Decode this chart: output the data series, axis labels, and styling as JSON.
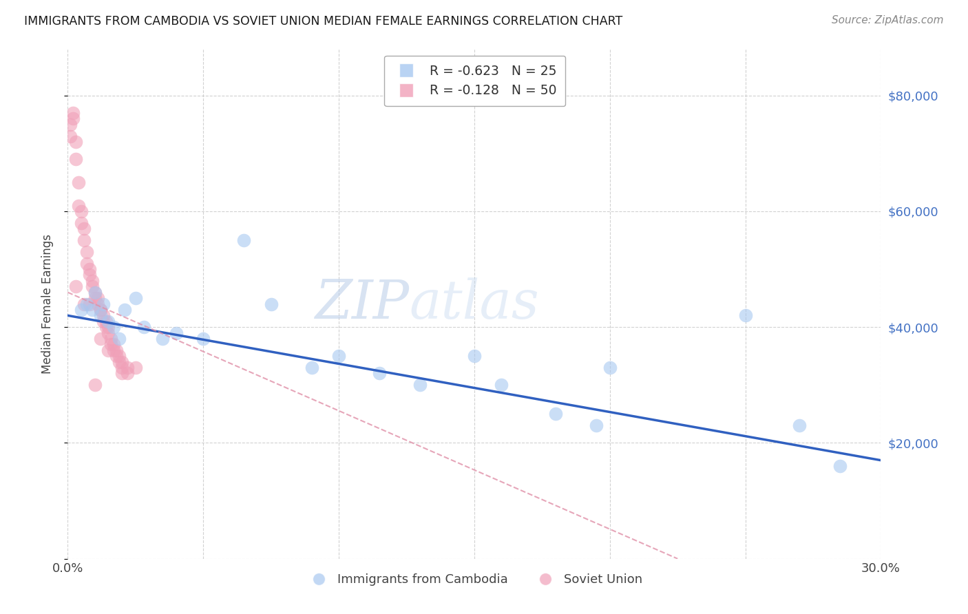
{
  "title": "IMMIGRANTS FROM CAMBODIA VS SOVIET UNION MEDIAN FEMALE EARNINGS CORRELATION CHART",
  "source": "Source: ZipAtlas.com",
  "ylabel": "Median Female Earnings",
  "xlim": [
    0.0,
    0.3
  ],
  "ylim": [
    0,
    88000
  ],
  "title_color": "#1a1a1a",
  "source_color": "#888888",
  "cambodia_scatter": [
    [
      0.005,
      43000
    ],
    [
      0.007,
      44000
    ],
    [
      0.009,
      43000
    ],
    [
      0.01,
      46000
    ],
    [
      0.012,
      42000
    ],
    [
      0.013,
      44000
    ],
    [
      0.015,
      41000
    ],
    [
      0.017,
      40000
    ],
    [
      0.019,
      38000
    ],
    [
      0.021,
      43000
    ],
    [
      0.025,
      45000
    ],
    [
      0.028,
      40000
    ],
    [
      0.035,
      38000
    ],
    [
      0.04,
      39000
    ],
    [
      0.05,
      38000
    ],
    [
      0.065,
      55000
    ],
    [
      0.075,
      44000
    ],
    [
      0.09,
      33000
    ],
    [
      0.1,
      35000
    ],
    [
      0.115,
      32000
    ],
    [
      0.13,
      30000
    ],
    [
      0.15,
      35000
    ],
    [
      0.16,
      30000
    ],
    [
      0.18,
      25000
    ],
    [
      0.195,
      23000
    ],
    [
      0.2,
      33000
    ],
    [
      0.25,
      42000
    ],
    [
      0.27,
      23000
    ],
    [
      0.285,
      16000
    ]
  ],
  "soviet_scatter": [
    [
      0.002,
      77000
    ],
    [
      0.002,
      76000
    ],
    [
      0.003,
      72000
    ],
    [
      0.003,
      69000
    ],
    [
      0.004,
      65000
    ],
    [
      0.004,
      61000
    ],
    [
      0.005,
      60000
    ],
    [
      0.005,
      58000
    ],
    [
      0.006,
      57000
    ],
    [
      0.006,
      55000
    ],
    [
      0.007,
      53000
    ],
    [
      0.007,
      51000
    ],
    [
      0.008,
      50000
    ],
    [
      0.008,
      49000
    ],
    [
      0.009,
      48000
    ],
    [
      0.009,
      47000
    ],
    [
      0.01,
      46000
    ],
    [
      0.01,
      45000
    ],
    [
      0.011,
      45000
    ],
    [
      0.011,
      44000
    ],
    [
      0.012,
      43000
    ],
    [
      0.012,
      43000
    ],
    [
      0.013,
      42000
    ],
    [
      0.013,
      41000
    ],
    [
      0.014,
      41000
    ],
    [
      0.014,
      40000
    ],
    [
      0.015,
      40000
    ],
    [
      0.015,
      39000
    ],
    [
      0.016,
      38000
    ],
    [
      0.016,
      37000
    ],
    [
      0.017,
      37000
    ],
    [
      0.017,
      36000
    ],
    [
      0.018,
      36000
    ],
    [
      0.018,
      35000
    ],
    [
      0.019,
      35000
    ],
    [
      0.019,
      34000
    ],
    [
      0.02,
      34000
    ],
    [
      0.02,
      33000
    ],
    [
      0.022,
      33000
    ],
    [
      0.022,
      32000
    ],
    [
      0.003,
      47000
    ],
    [
      0.008,
      44000
    ],
    [
      0.012,
      38000
    ],
    [
      0.015,
      36000
    ],
    [
      0.02,
      32000
    ],
    [
      0.001,
      75000
    ],
    [
      0.001,
      73000
    ],
    [
      0.025,
      33000
    ],
    [
      0.006,
      44000
    ],
    [
      0.01,
      30000
    ]
  ],
  "cambodia_line_x": [
    0.0,
    0.3
  ],
  "cambodia_line_y": [
    42000,
    17000
  ],
  "soviet_line_x": [
    0.0,
    0.225
  ],
  "soviet_line_y": [
    46000,
    0
  ],
  "scatter_color_cambodia": "#a8c8f0",
  "scatter_color_soviet": "#f0a0b8",
  "line_color_cambodia": "#3060c0",
  "line_color_soviet": "#e090a8",
  "grid_color": "#cccccc",
  "bg_color": "#ffffff",
  "right_ytick_labels": [
    "",
    "$20,000",
    "$40,000",
    "$60,000",
    "$80,000"
  ],
  "right_ytick_color": "#4472c4",
  "legend_color_cambodia": "#a8c8f0",
  "legend_color_soviet": "#f0a0b8"
}
